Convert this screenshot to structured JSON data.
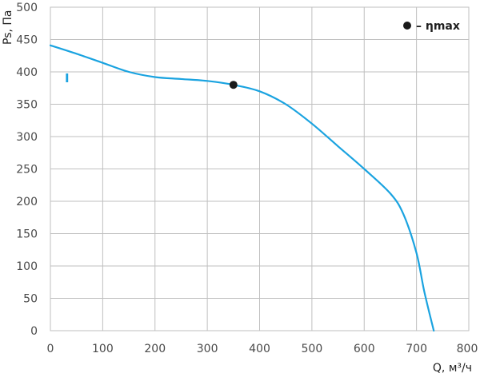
{
  "chart_data": {
    "type": "line",
    "title": "",
    "xlabel": "Q, м³/ч",
    "ylabel": "Ps, Па",
    "xlim": [
      0,
      800
    ],
    "ylim": [
      0,
      500
    ],
    "x_ticks": [
      0,
      100,
      200,
      300,
      400,
      500,
      600,
      700,
      800
    ],
    "y_ticks": [
      0,
      50,
      100,
      150,
      200,
      250,
      300,
      350,
      400,
      450,
      500
    ],
    "grid": true,
    "legend_position": "top-right",
    "legend": {
      "symbol": "●",
      "text": "– ηmax"
    },
    "series": [
      {
        "label": "I",
        "color": "#1aa3e0",
        "x": [
          0,
          50,
          100,
          150,
          200,
          250,
          300,
          350,
          400,
          450,
          500,
          550,
          600,
          650,
          675,
          700,
          715,
          733
        ],
        "y": [
          441,
          428,
          414,
          400,
          392,
          389,
          386,
          380,
          370,
          350,
          320,
          285,
          250,
          212,
          180,
          120,
          60,
          0
        ]
      }
    ],
    "markers": [
      {
        "x": 350,
        "y": 380,
        "color": "#1a1a1a"
      }
    ]
  }
}
